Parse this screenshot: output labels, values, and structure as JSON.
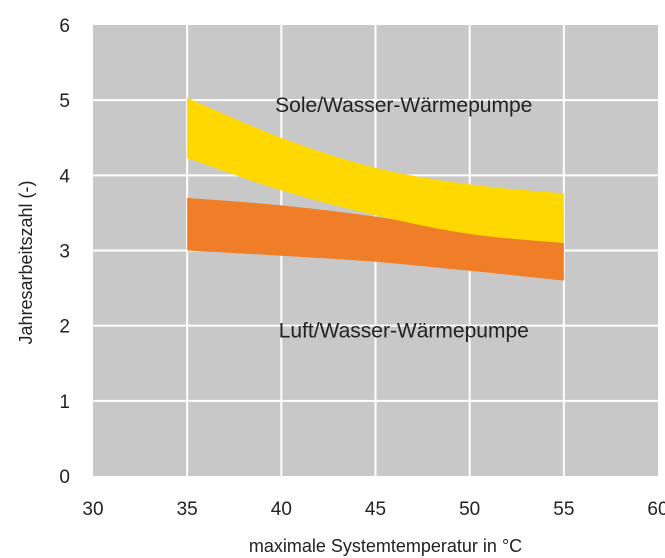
{
  "chart_data": {
    "type": "area",
    "xlabel": "maximale Systemtemperatur in °C",
    "ylabel": "Jahresarbeitszahl (-)",
    "xlim": [
      30,
      60
    ],
    "ylim": [
      0,
      6
    ],
    "x_ticks": [
      30,
      35,
      40,
      45,
      50,
      55,
      60
    ],
    "y_ticks": [
      0,
      1,
      2,
      3,
      4,
      5,
      6
    ],
    "grid": true,
    "background_color": "#c8c8c8",
    "series": [
      {
        "name": "Luft/Wasser-Wärmepumpe",
        "color": "#f07d28",
        "x": [
          35,
          40,
          45,
          50,
          55
        ],
        "upper": [
          3.7,
          3.6,
          3.45,
          3.25,
          3.1
        ],
        "lower": [
          3.0,
          2.93,
          2.85,
          2.73,
          2.6
        ]
      },
      {
        "name": "Sole/Wasser-Wärmepumpe",
        "color": "#fed800",
        "x": [
          35,
          40,
          45,
          50,
          55
        ],
        "upper": [
          5.03,
          4.5,
          4.1,
          3.88,
          3.76
        ],
        "lower": [
          4.23,
          3.8,
          3.47,
          3.22,
          3.1
        ]
      }
    ],
    "annotations": [
      {
        "text": "Sole/Wasser-Wärmepumpe",
        "x": 46.5,
        "y": 4.95
      },
      {
        "text": "Luft/Wasser-Wärmepumpe",
        "x": 46.5,
        "y": 1.95
      }
    ]
  }
}
